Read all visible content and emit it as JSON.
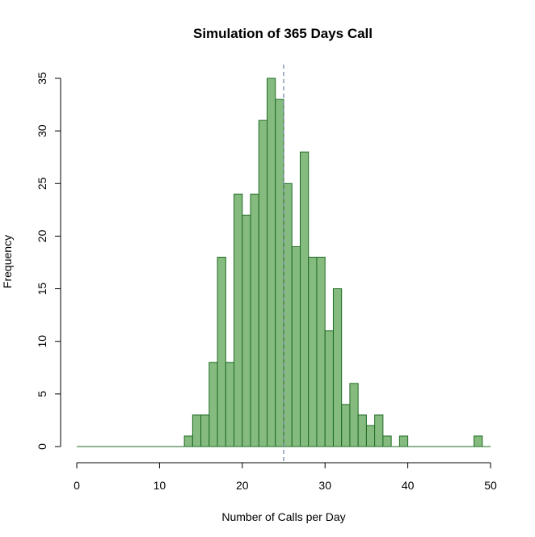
{
  "chart_data": {
    "type": "bar",
    "title": "Simulation of 365 Days Call",
    "xlabel": "Number of Calls per Day",
    "ylabel": "Frequency",
    "xlim": [
      0,
      50
    ],
    "ylim": [
      0,
      35
    ],
    "x_ticks": [
      0,
      10,
      20,
      30,
      40,
      50
    ],
    "y_ticks": [
      0,
      5,
      10,
      15,
      20,
      25,
      30,
      35
    ],
    "bin_width": 1,
    "bins": [
      {
        "x": 0,
        "value": 0
      },
      {
        "x": 1,
        "value": 0
      },
      {
        "x": 2,
        "value": 0
      },
      {
        "x": 3,
        "value": 0
      },
      {
        "x": 4,
        "value": 0
      },
      {
        "x": 5,
        "value": 0
      },
      {
        "x": 6,
        "value": 0
      },
      {
        "x": 7,
        "value": 0
      },
      {
        "x": 8,
        "value": 0
      },
      {
        "x": 9,
        "value": 0
      },
      {
        "x": 10,
        "value": 0
      },
      {
        "x": 11,
        "value": 0
      },
      {
        "x": 12,
        "value": 0
      },
      {
        "x": 13,
        "value": 1
      },
      {
        "x": 14,
        "value": 3
      },
      {
        "x": 15,
        "value": 3
      },
      {
        "x": 16,
        "value": 8
      },
      {
        "x": 17,
        "value": 18
      },
      {
        "x": 18,
        "value": 8
      },
      {
        "x": 19,
        "value": 24
      },
      {
        "x": 20,
        "value": 22
      },
      {
        "x": 21,
        "value": 24
      },
      {
        "x": 22,
        "value": 31
      },
      {
        "x": 23,
        "value": 35
      },
      {
        "x": 24,
        "value": 33
      },
      {
        "x": 25,
        "value": 25
      },
      {
        "x": 26,
        "value": 19
      },
      {
        "x": 27,
        "value": 28
      },
      {
        "x": 28,
        "value": 18
      },
      {
        "x": 29,
        "value": 18
      },
      {
        "x": 30,
        "value": 11
      },
      {
        "x": 31,
        "value": 15
      },
      {
        "x": 32,
        "value": 4
      },
      {
        "x": 33,
        "value": 6
      },
      {
        "x": 34,
        "value": 3
      },
      {
        "x": 35,
        "value": 2
      },
      {
        "x": 36,
        "value": 3
      },
      {
        "x": 37,
        "value": 1
      },
      {
        "x": 38,
        "value": 0
      },
      {
        "x": 39,
        "value": 1
      },
      {
        "x": 40,
        "value": 0
      },
      {
        "x": 41,
        "value": 0
      },
      {
        "x": 42,
        "value": 0
      },
      {
        "x": 43,
        "value": 0
      },
      {
        "x": 44,
        "value": 0
      },
      {
        "x": 45,
        "value": 0
      },
      {
        "x": 46,
        "value": 0
      },
      {
        "x": 47,
        "value": 0
      },
      {
        "x": 48,
        "value": 1
      },
      {
        "x": 49,
        "value": 0
      }
    ],
    "reference_line": {
      "x": 25,
      "style": "dashed",
      "color": "#6b7fa6"
    },
    "colors": {
      "bar_fill": "#86bb80",
      "bar_stroke": "#1e6b23",
      "axis": "#000000"
    },
    "grid": false,
    "legend": "none"
  }
}
